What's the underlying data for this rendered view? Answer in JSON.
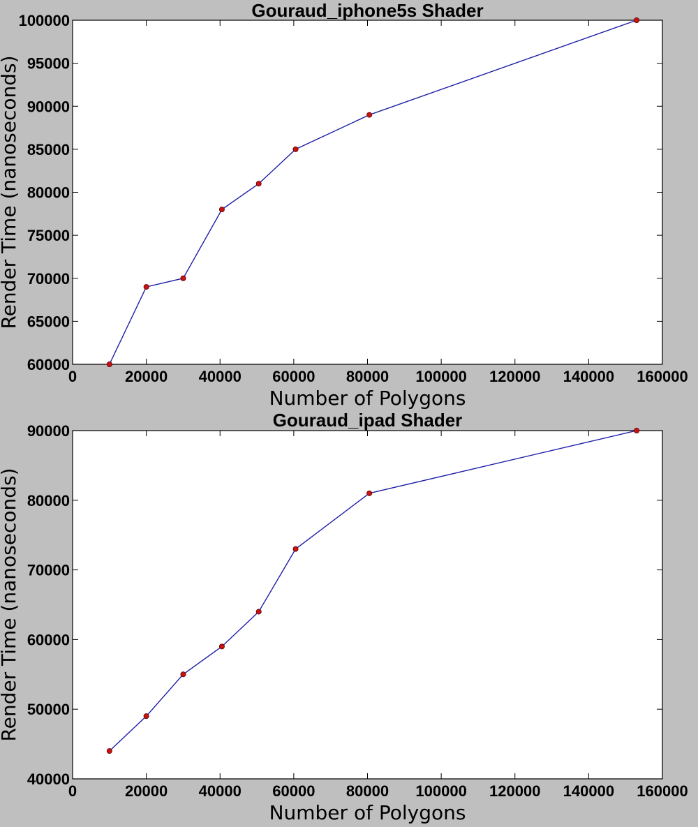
{
  "colors": {
    "background": "#bfbfbf",
    "plot_background": "#ffffff",
    "line": "#1f1fa8",
    "marker": "#cc1111",
    "marker_edge": "#550000"
  },
  "chart_data": [
    {
      "type": "line",
      "title": "Gouraud_iphone5s Shader",
      "xlabel": "Number of Polygons",
      "ylabel": "Render Time (nanoseconds)",
      "xlim": [
        0,
        160000
      ],
      "ylim": [
        60000,
        100000
      ],
      "xticks": [
        0,
        20000,
        40000,
        60000,
        80000,
        100000,
        120000,
        140000,
        160000
      ],
      "yticks": [
        60000,
        65000,
        70000,
        75000,
        80000,
        85000,
        90000,
        95000,
        100000
      ],
      "grid": false,
      "series": [
        {
          "x": [
            10000,
            20000,
            30000,
            40500,
            50500,
            60500,
            80500,
            153000
          ],
          "y": [
            60000,
            69000,
            70000,
            78000,
            81000,
            85000,
            89000,
            100000
          ]
        }
      ]
    },
    {
      "type": "line",
      "title": "Gouraud_ipad Shader",
      "xlabel": "Number of Polygons",
      "ylabel": "Render Time (nanoseconds)",
      "xlim": [
        0,
        160000
      ],
      "ylim": [
        40000,
        90000
      ],
      "xticks": [
        0,
        20000,
        40000,
        60000,
        80000,
        100000,
        120000,
        140000,
        160000
      ],
      "yticks": [
        40000,
        50000,
        60000,
        70000,
        80000,
        90000
      ],
      "grid": false,
      "series": [
        {
          "x": [
            10000,
            20000,
            30000,
            40500,
            50500,
            60500,
            80500,
            153000
          ],
          "y": [
            44000,
            49000,
            55000,
            59000,
            64000,
            73000,
            81000,
            90000
          ]
        }
      ]
    }
  ]
}
